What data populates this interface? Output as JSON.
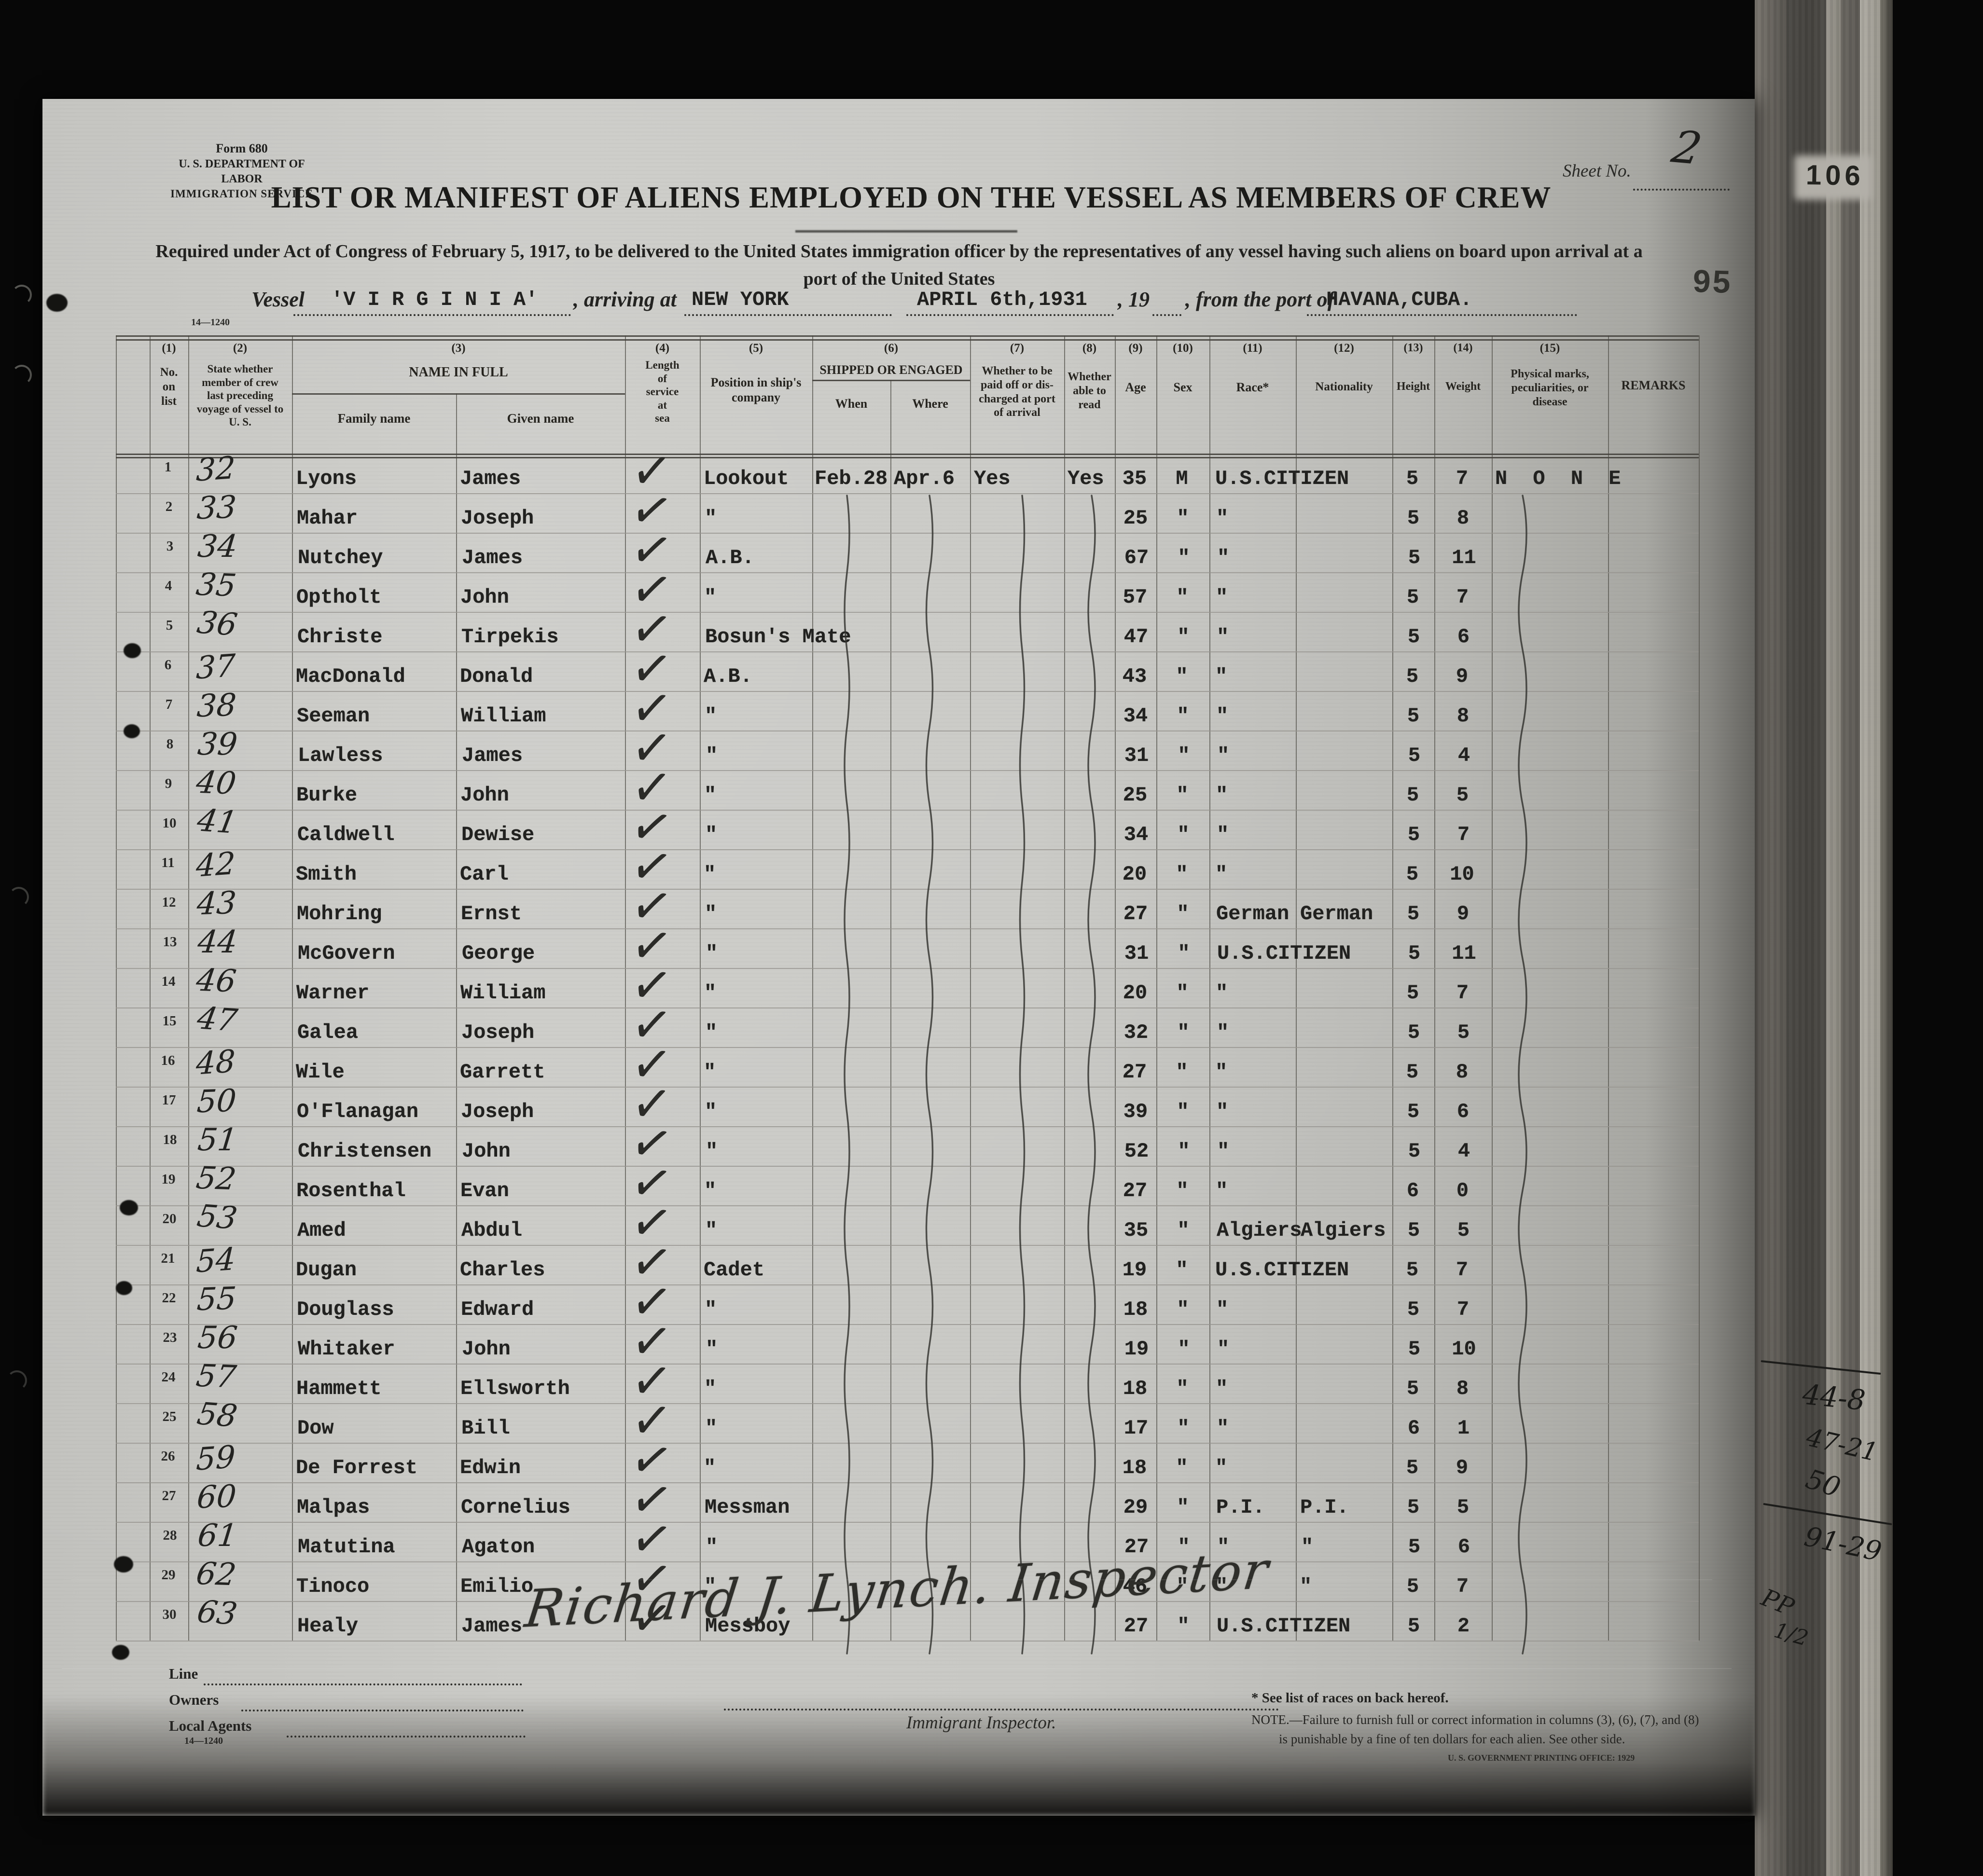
{
  "form": {
    "form_no": "Form 680",
    "dept": "U. S. DEPARTMENT OF LABOR",
    "service": "IMMIGRATION SERVICE",
    "title": "LIST OR MANIFEST OF ALIENS EMPLOYED ON THE VESSEL AS MEMBERS OF CREW",
    "subtitle_line1": "Required under Act of Congress of February 5, 1917, to be delivered to the United States immigration officer by the representatives of any vessel having such aliens on board upon arrival at a",
    "subtitle_line2": "port of the United States",
    "sheet_label": "Sheet No.",
    "sheet_value": "2",
    "side_stamp": "106",
    "page_stamp": "95",
    "vessel_label": "Vessel",
    "vessel_value": "'V I R G I N I A'",
    "arriving_label": ", arriving at",
    "arriving_value": "NEW YORK",
    "date_value": "APRIL 6th,1931",
    "year_label": ", 19",
    "port_label": ", from the port of",
    "port_value": "HAVANA,CUBA.",
    "form_code": "14—1240"
  },
  "columns": {
    "c1_num": "(1)",
    "c1": "No.\non\nlist",
    "c2_num": "(2)",
    "c2": "State whether\nmember of crew\nlast preceding\nvoyage of vessel to\nU. S.",
    "c3_num": "(3)",
    "c3_title": "NAME IN FULL",
    "c3a": "Family name",
    "c3b": "Given name",
    "c4_num": "(4)",
    "c4": "Length\nof\nservice\nat\nsea",
    "c5_num": "(5)",
    "c5": "Position in ship's\ncompany",
    "c6_num": "(6)",
    "c6_title": "SHIPPED OR ENGAGED",
    "c6a": "When",
    "c6b": "Where",
    "c7_num": "(7)",
    "c7": "Whether to be\npaid off or dis-\ncharged at port\nof arrival",
    "c8_num": "(8)",
    "c8": "Whether\nable to\nread",
    "c9_num": "(9)",
    "c9": "Age",
    "c10_num": "(10)",
    "c10": "Sex",
    "c11_num": "(11)",
    "c11": "Race*",
    "c12_num": "(12)",
    "c12": "Nationality",
    "c13_num": "(13)",
    "c13": "Height",
    "c14_num": "(14)",
    "c14": "Weight",
    "c15_num": "(15)",
    "c15": "Physical marks,\npeculiarities, or\ndisease",
    "c16": "REMARKS"
  },
  "rows": [
    {
      "n": "1",
      "list": "32",
      "family": "Lyons",
      "given": "James",
      "check": true,
      "pos": "Lookout",
      "when": "Feb.28",
      "where": "Apr.6",
      "paid": "Yes",
      "read": "Yes",
      "age": "35",
      "sex": "M",
      "race": "U.S.CITIZEN",
      "nat": "",
      "ht": "5",
      "wt": "7",
      "marks": "N O N E"
    },
    {
      "n": "2",
      "list": "33",
      "family": "Mahar",
      "given": "Joseph",
      "check": true,
      "pos": "\"",
      "age": "25",
      "sex": "\"",
      "race": "\"",
      "ht": "5",
      "wt": "8"
    },
    {
      "n": "3",
      "list": "34",
      "family": "Nutchey",
      "given": "James",
      "check": true,
      "pos": "A.B.",
      "age": "67",
      "sex": "\"",
      "race": "\"",
      "ht": "5",
      "wt": "11"
    },
    {
      "n": "4",
      "list": "35",
      "family": "Optholt",
      "given": "John",
      "check": true,
      "pos": "\"",
      "age": "57",
      "sex": "\"",
      "race": "\"",
      "ht": "5",
      "wt": "7"
    },
    {
      "n": "5",
      "list": "36",
      "family": "Christe",
      "given": "Tirpekis",
      "check": true,
      "pos": "Bosun's Mate",
      "age": "47",
      "sex": "\"",
      "race": "\"",
      "ht": "5",
      "wt": "6"
    },
    {
      "n": "6",
      "list": "37",
      "family": "MacDonald",
      "given": "Donald",
      "check": true,
      "pos": "A.B.",
      "age": "43",
      "sex": "\"",
      "race": "\"",
      "ht": "5",
      "wt": "9"
    },
    {
      "n": "7",
      "list": "38",
      "family": "Seeman",
      "given": "William",
      "check": true,
      "pos": "\"",
      "age": "34",
      "sex": "\"",
      "race": "\"",
      "ht": "5",
      "wt": "8"
    },
    {
      "n": "8",
      "list": "39",
      "family": "Lawless",
      "given": "James",
      "check": true,
      "pos": "\"",
      "age": "31",
      "sex": "\"",
      "race": "\"",
      "ht": "5",
      "wt": "4"
    },
    {
      "n": "9",
      "list": "40",
      "family": "Burke",
      "given": "John",
      "check": true,
      "pos": "\"",
      "age": "25",
      "sex": "\"",
      "race": "\"",
      "ht": "5",
      "wt": "5"
    },
    {
      "n": "10",
      "list": "41",
      "family": "Caldwell",
      "given": "Dewise",
      "check": true,
      "pos": "\"",
      "age": "34",
      "sex": "\"",
      "race": "\"",
      "ht": "5",
      "wt": "7"
    },
    {
      "n": "11",
      "list": "42",
      "family": "Smith",
      "given": "Carl",
      "check": true,
      "pos": "\"",
      "age": "20",
      "sex": "\"",
      "race": "\"",
      "ht": "5",
      "wt": "10"
    },
    {
      "n": "12",
      "list": "43",
      "family": "Mohring",
      "given": "Ernst",
      "check": true,
      "pos": "\"",
      "age": "27",
      "sex": "\"",
      "race": "German",
      "nat": "German",
      "ht": "5",
      "wt": "9"
    },
    {
      "n": "13",
      "list": "44",
      "family": "McGovern",
      "given": "George",
      "check": true,
      "pos": "\"",
      "age": "31",
      "sex": "\"",
      "race": "U.S.CITIZEN",
      "ht": "5",
      "wt": "11"
    },
    {
      "n": "14",
      "list": "46",
      "family": "Warner",
      "given": "William",
      "check": true,
      "pos": "\"",
      "age": "20",
      "sex": "\"",
      "race": "\"",
      "ht": "5",
      "wt": "7"
    },
    {
      "n": "15",
      "list": "47",
      "family": "Galea",
      "given": "Joseph",
      "check": true,
      "pos": "\"",
      "age": "32",
      "sex": "\"",
      "race": "\"",
      "ht": "5",
      "wt": "5"
    },
    {
      "n": "16",
      "list": "48",
      "family": "Wile",
      "given": "Garrett",
      "check": true,
      "pos": "\"",
      "age": "27",
      "sex": "\"",
      "race": "\"",
      "ht": "5",
      "wt": "8"
    },
    {
      "n": "17",
      "list": "50",
      "family": "O'Flanagan",
      "given": "Joseph",
      "check": true,
      "pos": "\"",
      "age": "39",
      "sex": "\"",
      "race": "\"",
      "ht": "5",
      "wt": "6"
    },
    {
      "n": "18",
      "list": "51",
      "family": "Christensen",
      "given": "John",
      "check": true,
      "pos": "\"",
      "age": "52",
      "sex": "\"",
      "race": "\"",
      "ht": "5",
      "wt": "4"
    },
    {
      "n": "19",
      "list": "52",
      "family": "Rosenthal",
      "given": "Evan",
      "check": true,
      "pos": "\"",
      "age": "27",
      "sex": "\"",
      "race": "\"",
      "ht": "6",
      "wt": "0"
    },
    {
      "n": "20",
      "list": "53",
      "family": "Amed",
      "given": "Abdul",
      "check": true,
      "pos": "\"",
      "age": "35",
      "sex": "\"",
      "race": "Algiers",
      "nat": "Algiers",
      "ht": "5",
      "wt": "5"
    },
    {
      "n": "21",
      "list": "54",
      "family": "Dugan",
      "given": "Charles",
      "check": true,
      "pos": "Cadet",
      "age": "19",
      "sex": "\"",
      "race": "U.S.CITIZEN",
      "ht": "5",
      "wt": "7"
    },
    {
      "n": "22",
      "list": "55",
      "family": "Douglass",
      "given": "Edward",
      "check": true,
      "pos": "\"",
      "age": "18",
      "sex": "\"",
      "race": "\"",
      "ht": "5",
      "wt": "7"
    },
    {
      "n": "23",
      "list": "56",
      "family": "Whitaker",
      "given": "John",
      "check": true,
      "pos": "\"",
      "age": "19",
      "sex": "\"",
      "race": "\"",
      "ht": "5",
      "wt": "10"
    },
    {
      "n": "24",
      "list": "57",
      "family": "Hammett",
      "given": "Ellsworth",
      "check": true,
      "pos": "\"",
      "age": "18",
      "sex": "\"",
      "race": "\"",
      "ht": "5",
      "wt": "8"
    },
    {
      "n": "25",
      "list": "58",
      "family": "Dow",
      "given": "Bill",
      "check": true,
      "pos": "\"",
      "age": "17",
      "sex": "\"",
      "race": "\"",
      "ht": "6",
      "wt": "1"
    },
    {
      "n": "26",
      "list": "59",
      "family": "De Forrest",
      "given": "Edwin",
      "check": true,
      "pos": "\"",
      "age": "18",
      "sex": "\"",
      "race": "\"",
      "ht": "5",
      "wt": "9"
    },
    {
      "n": "27",
      "list": "60",
      "family": "Malpas",
      "given": "Cornelius",
      "check": true,
      "pos": "Messman",
      "age": "29",
      "sex": "\"",
      "race": "P.I.",
      "nat": "P.I.",
      "ht": "5",
      "wt": "5"
    },
    {
      "n": "28",
      "list": "61",
      "family": "Matutina",
      "given": "Agaton",
      "check": true,
      "pos": "\"",
      "age": "27",
      "sex": "\"",
      "race": "\"",
      "nat": "\"",
      "ht": "5",
      "wt": "6"
    },
    {
      "n": "29",
      "list": "62",
      "family": "Tinoco",
      "given": "Emilio",
      "check": true,
      "pos": "\"",
      "age": "46",
      "sex": "\"",
      "race": "\"",
      "nat": "\"",
      "ht": "5",
      "wt": "7"
    },
    {
      "n": "30",
      "list": "63",
      "family": "Healy",
      "given": "James",
      "check": true,
      "pos": "Messboy",
      "age": "27",
      "sex": "\"",
      "race": "U.S.CITIZEN",
      "ht": "5",
      "wt": "2"
    }
  ],
  "signature": "Richard J. Lynch. Inspector",
  "footer": {
    "line_label": "Line",
    "owners_label": "Owners",
    "agents_label": "Local Agents",
    "form_code": "14—1240",
    "inspector_label": "Immigrant Inspector.",
    "note_star": "* See list of races on back hereof.",
    "note_1": "NOTE.—Failure to furnish full or correct information in columns (3), (6), (7), and (8)",
    "note_2": "is punishable by a fine of ten dollars for each alien.   See other side.",
    "printing": "U. S. GOVERNMENT PRINTING OFFICE: 1929"
  },
  "margin_notes": [
    "44-8",
    "47-21",
    "50",
    "91-29",
    "PP",
    "1/2"
  ]
}
